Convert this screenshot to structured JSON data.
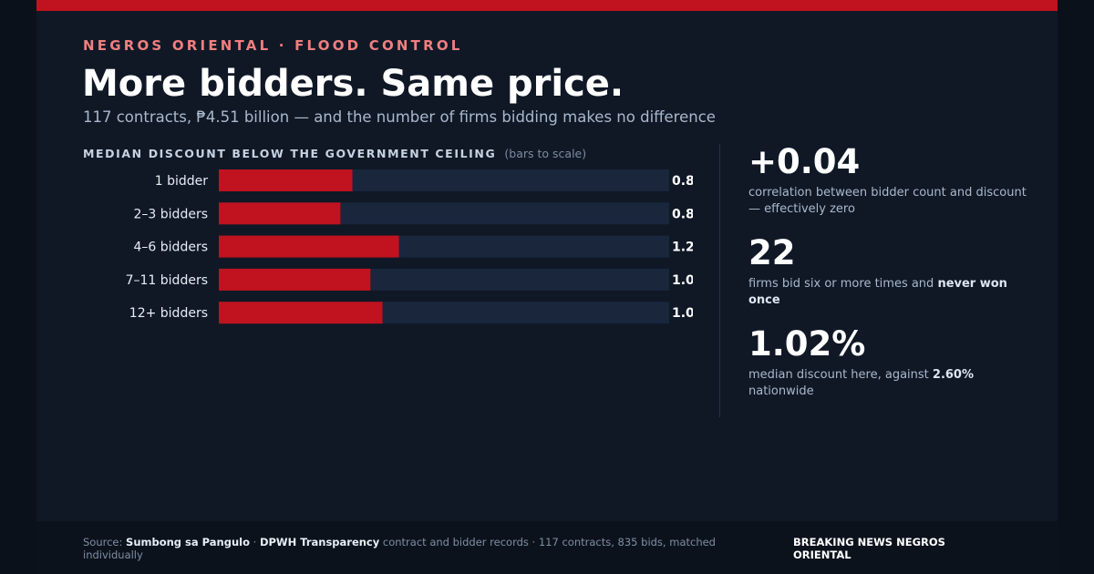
{
  "kicker": "NEGROS ORIENTAL · FLOOD CONTROL",
  "headline": "More bidders. Same price.",
  "subhead": "117 contracts, ₱4.51 billion — and the number of firms bidding makes no difference",
  "chart_title": "MEDIAN DISCOUNT BELOW THE GOVERNMENT CEILING",
  "chart_note": "(bars to scale)",
  "colors": {
    "accent": "#c1121f",
    "track": "#19263c",
    "background": "#101826"
  },
  "chart_data": {
    "type": "bar",
    "orientation": "horizontal",
    "title": "MEDIAN DISCOUNT BELOW THE GOVERNMENT CEILING",
    "categories": [
      "1 bidder",
      "2–3 bidders",
      "4–6 bidders",
      "7–11 bidders",
      "12+ bidders"
    ],
    "values": [
      0.89,
      0.81,
      1.2,
      1.01,
      1.09
    ],
    "value_labels": [
      "0.89%",
      "0.81%",
      "1.20%",
      "1.01%",
      "1.09%"
    ],
    "xlim": [
      0,
      3.0
    ],
    "grid": false
  },
  "stats": [
    {
      "value": "+0.04",
      "text": "correlation between bidder count and discount — effectively zero",
      "bold": ""
    },
    {
      "value": "22",
      "text": "firms bid six or more times and ",
      "bold": "never won once"
    },
    {
      "value": "1.02%",
      "text_pre": "median discount here, against ",
      "bold": "2.60%",
      "text_post": " nationwide"
    }
  ],
  "footer": {
    "source_prefix": "Source: ",
    "source_1": "Sumbong sa Pangulo",
    "sep": " · ",
    "source_2": "DPWH Transparency",
    "source_rest": " contract and bidder records · 117 contracts, 835 bids, matched individually",
    "brand": "BREAKING NEWS NEGROS ORIENTAL"
  }
}
